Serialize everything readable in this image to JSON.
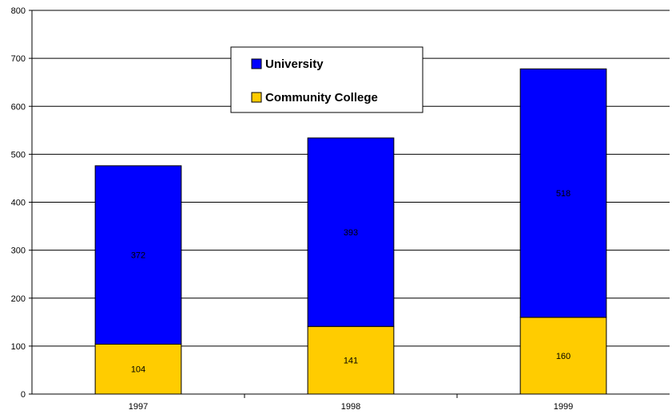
{
  "chart_data": {
    "type": "bar",
    "stacked": true,
    "categories": [
      "1997",
      "1998",
      "1999"
    ],
    "series": [
      {
        "name": "Community College",
        "values": [
          104,
          141,
          160
        ],
        "color": "#ffcc00"
      },
      {
        "name": "University",
        "values": [
          372,
          393,
          518
        ],
        "color": "#0000ff"
      }
    ],
    "legend_order": [
      "University",
      "Community College"
    ],
    "y_ticks": [
      "0",
      "100",
      "200",
      "300",
      "400",
      "500",
      "600",
      "700",
      "800"
    ],
    "ylim": [
      0,
      800
    ],
    "grid": true,
    "legend_position": "top-center",
    "title": "",
    "xlabel": "",
    "ylabel": ""
  }
}
